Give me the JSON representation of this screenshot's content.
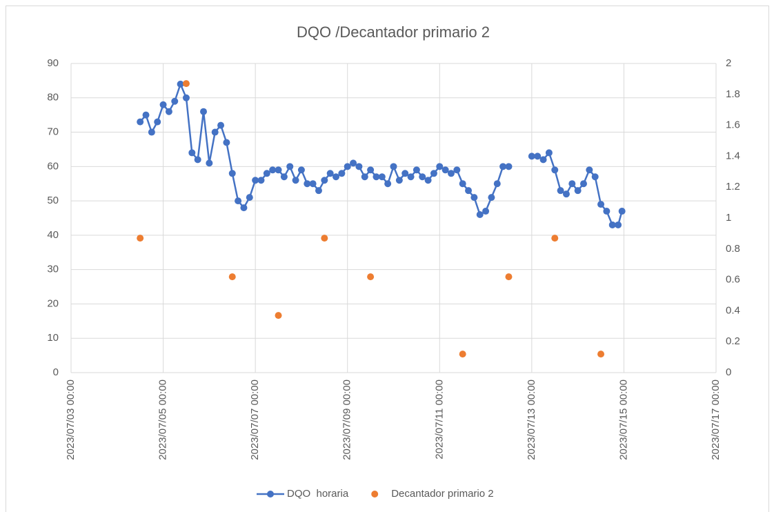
{
  "chart_data": {
    "type": "line",
    "title": "DQO /Decantador primario 2",
    "x": [
      "2023/07/04 12:00",
      "2023/07/04 15:00",
      "2023/07/04 18:00",
      "2023/07/04 21:00",
      "2023/07/05 00:00",
      "2023/07/05 03:00",
      "2023/07/05 06:00",
      "2023/07/05 09:00",
      "2023/07/05 12:00",
      "2023/07/05 15:00",
      "2023/07/05 18:00",
      "2023/07/05 21:00",
      "2023/07/06 00:00",
      "2023/07/06 03:00",
      "2023/07/06 06:00",
      "2023/07/06 09:00",
      "2023/07/06 12:00",
      "2023/07/06 15:00",
      "2023/07/06 18:00",
      "2023/07/06 21:00",
      "2023/07/07 00:00",
      "2023/07/07 03:00",
      "2023/07/07 06:00",
      "2023/07/07 09:00",
      "2023/07/07 12:00",
      "2023/07/07 15:00",
      "2023/07/07 18:00",
      "2023/07/07 21:00",
      "2023/07/08 00:00",
      "2023/07/08 03:00",
      "2023/07/08 06:00",
      "2023/07/08 09:00",
      "2023/07/08 12:00",
      "2023/07/08 15:00",
      "2023/07/08 18:00",
      "2023/07/08 21:00",
      "2023/07/09 00:00",
      "2023/07/09 03:00",
      "2023/07/09 06:00",
      "2023/07/09 09:00",
      "2023/07/09 12:00",
      "2023/07/09 15:00",
      "2023/07/09 18:00",
      "2023/07/09 21:00",
      "2023/07/10 00:00",
      "2023/07/10 03:00",
      "2023/07/10 06:00",
      "2023/07/10 09:00",
      "2023/07/10 12:00",
      "2023/07/10 15:00",
      "2023/07/10 18:00",
      "2023/07/10 21:00",
      "2023/07/11 00:00",
      "2023/07/11 03:00",
      "2023/07/11 06:00",
      "2023/07/11 09:00",
      "2023/07/11 12:00",
      "2023/07/11 15:00",
      "2023/07/11 18:00",
      "2023/07/11 21:00",
      "2023/07/12 00:00",
      "2023/07/12 03:00",
      "2023/07/12 06:00",
      "2023/07/12 09:00",
      "2023/07/12 12:00",
      "2023/07/12 18:00",
      "2023/07/13 00:00",
      "2023/07/13 03:00",
      "2023/07/13 06:00",
      "2023/07/13 09:00",
      "2023/07/13 12:00",
      "2023/07/13 15:00",
      "2023/07/13 18:00",
      "2023/07/13 21:00",
      "2023/07/14 00:00",
      "2023/07/14 03:00",
      "2023/07/14 06:00",
      "2023/07/14 09:00",
      "2023/07/14 12:00",
      "2023/07/14 15:00",
      "2023/07/14 18:00",
      "2023/07/14 21:00",
      "2023/07/14 23:00"
    ],
    "series": [
      {
        "name": "DQO  horaria",
        "color": "#4472c4",
        "values": [
          73,
          75,
          70,
          73,
          78,
          76,
          79,
          84,
          80,
          64,
          62,
          76,
          61,
          70,
          72,
          67,
          58,
          50,
          48,
          51,
          56,
          56,
          58,
          59,
          59,
          57,
          60,
          56,
          59,
          55,
          55,
          53,
          56,
          58,
          57,
          58,
          60,
          61,
          60,
          57,
          59,
          57,
          57,
          55,
          60,
          56,
          58,
          57,
          59,
          57,
          56,
          58,
          60,
          59,
          58,
          59,
          55,
          53,
          51,
          46,
          47,
          51,
          55,
          60,
          60,
          null,
          63,
          63,
          62,
          64,
          59,
          53,
          52,
          55,
          53,
          55,
          59,
          57,
          49,
          47,
          43,
          43,
          47
        ]
      },
      {
        "name": "Decantador primario 2",
        "color": "#ed7d31",
        "axis": "y2",
        "marker_only": true,
        "x": [
          "2023/07/04 12:00",
          "2023/07/05 12:00",
          "2023/07/06 12:00",
          "2023/07/07 12:00",
          "2023/07/08 12:00",
          "2023/07/09 12:00",
          "2023/07/11 12:00",
          "2023/07/12 12:00",
          "2023/07/13 12:00",
          "2023/07/14 12:00"
        ],
        "values": [
          0.87,
          1.87,
          0.62,
          0.37,
          0.87,
          0.62,
          0.12,
          0.62,
          0.87,
          0.12
        ]
      }
    ],
    "xlim": [
      "2023/07/03 00:00",
      "2023/07/17 00:00"
    ],
    "xticks": [
      "2023/07/03 00:00",
      "2023/07/05 00:00",
      "2023/07/07 00:00",
      "2023/07/09 00:00",
      "2023/07/11 00:00",
      "2023/07/13 00:00",
      "2023/07/15 00:00",
      "2023/07/17 00:00"
    ],
    "ylim": [
      0,
      90
    ],
    "yticks": [
      0,
      10,
      20,
      30,
      40,
      50,
      60,
      70,
      80,
      90
    ],
    "y2lim": [
      0,
      2
    ],
    "y2ticks": [
      0,
      0.2,
      0.4,
      0.6,
      0.8,
      1,
      1.2,
      1.4,
      1.6,
      1.8,
      2
    ],
    "grid": true,
    "legend": "bottom"
  }
}
